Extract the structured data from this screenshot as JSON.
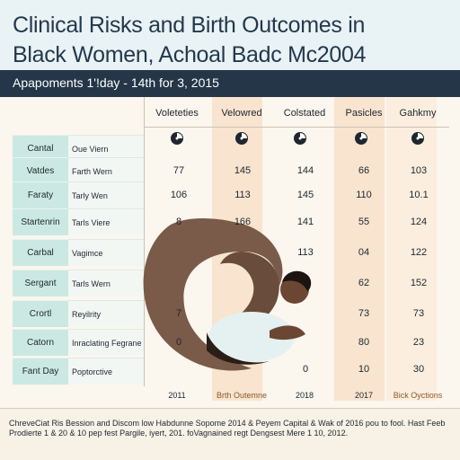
{
  "title_line1": "Clinical Risks and Birth Outcomes in",
  "title_line2": "Black Women, Achoal Badc Mc2004",
  "subtitle": "Apapoments 1'!day - 14th for 3, 2015",
  "colors": {
    "header_bg": "#e9f2f4",
    "subbar_bg": "#243648",
    "row_label_bg": "#cbe9e2",
    "peach_band": "#f8e4cf",
    "accent_text": "#8a5a2a"
  },
  "table": {
    "columns": [
      "Voleteties",
      "Velowred",
      "Colstated",
      "Pasicles",
      "Gahkmy"
    ],
    "icon_name": "pie-gauge-icon",
    "rows": [
      {
        "label": "Cantal",
        "sub": "Oue Viern",
        "values": [
          "",
          "",
          "",
          "",
          ""
        ]
      },
      {
        "label": "Vatdes",
        "sub": "Farth Wern",
        "values": [
          "77",
          "145",
          "144",
          "66",
          "103"
        ]
      },
      {
        "label": "Faraty",
        "sub": "Tarly Wen",
        "values": [
          "106",
          "113",
          "145",
          "110",
          "10.1"
        ]
      },
      {
        "label": "Startenrin",
        "sub": "Tarls Viere",
        "values": [
          "8",
          "166",
          "141",
          "55",
          "124"
        ]
      },
      {
        "label": "Carbal",
        "sub": "Vagimce",
        "values": [
          "",
          "",
          "113",
          "04",
          "122"
        ]
      },
      {
        "label": "Sergant",
        "sub": "Tarls Wern",
        "values": [
          "",
          "",
          "",
          "62",
          "152"
        ]
      },
      {
        "label": "Crortl",
        "sub": "Reyilrity",
        "values": [
          "7",
          "",
          "",
          "73",
          "73"
        ]
      },
      {
        "label": "Catorn",
        "sub": "Inraclating Fegrane",
        "values": [
          "0",
          "",
          "",
          "80",
          "23"
        ]
      },
      {
        "label": "Fant Day",
        "sub": "Poptorctive",
        "values": [
          "",
          "",
          "0",
          "10",
          "30"
        ]
      }
    ]
  },
  "footer": {
    "labels": [
      "2011",
      "Brth Outemne",
      "2018",
      "2017",
      "Bick Oyctions"
    ]
  },
  "footnote": "ChreveCiat Ris Bession and Discom low Habdunne Sopome 2014 & Peyem Capital & Wak of 2016 pou to fool. Hast Feeb Prodierte 1 & 20 & 10 pep fest Pargile, iyert, 201. foVagnained regt Dengsest Mere 1 10, 2012."
}
